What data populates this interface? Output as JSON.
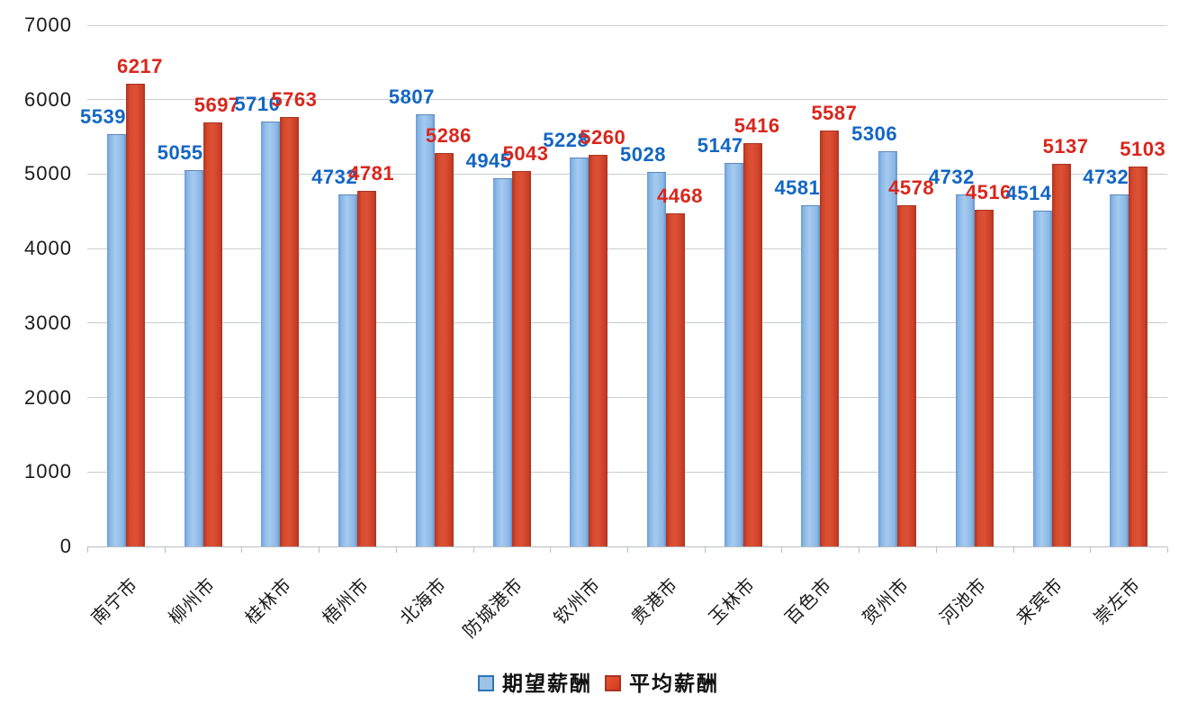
{
  "chart_data": {
    "type": "bar",
    "title": "",
    "categories": [
      "南宁市",
      "柳州市",
      "桂林市",
      "梧州市",
      "北海市",
      "防城港市",
      "钦州市",
      "贵港市",
      "玉林市",
      "百色市",
      "贺州市",
      "河池市",
      "来宾市",
      "崇左市"
    ],
    "series": [
      {
        "name": "期望薪酬",
        "values": [
          5539,
          5055,
          5710,
          4732,
          5807,
          4945,
          5228,
          5028,
          5147,
          4581,
          5306,
          4732,
          4514,
          4732
        ],
        "bar_color": "#8db4e2",
        "label_color": "#1266c3"
      },
      {
        "name": "平均薪酬",
        "values": [
          6217,
          5697,
          5763,
          4781,
          5286,
          5043,
          5260,
          4468,
          5416,
          5587,
          4578,
          4516,
          5137,
          5103
        ],
        "bar_color": "#d0432b",
        "label_color": "#d9261c"
      }
    ],
    "xlabel": "",
    "ylabel": "",
    "ylim": [
      0,
      7000
    ],
    "ytick_interval": 1000,
    "yticks": [
      "0",
      "1000",
      "2000",
      "3000",
      "4000",
      "5000",
      "6000",
      "7000"
    ],
    "grid": true,
    "gridline_color": "#c9cdd1",
    "data_labels_shown": true,
    "legend_position": "bottom"
  }
}
